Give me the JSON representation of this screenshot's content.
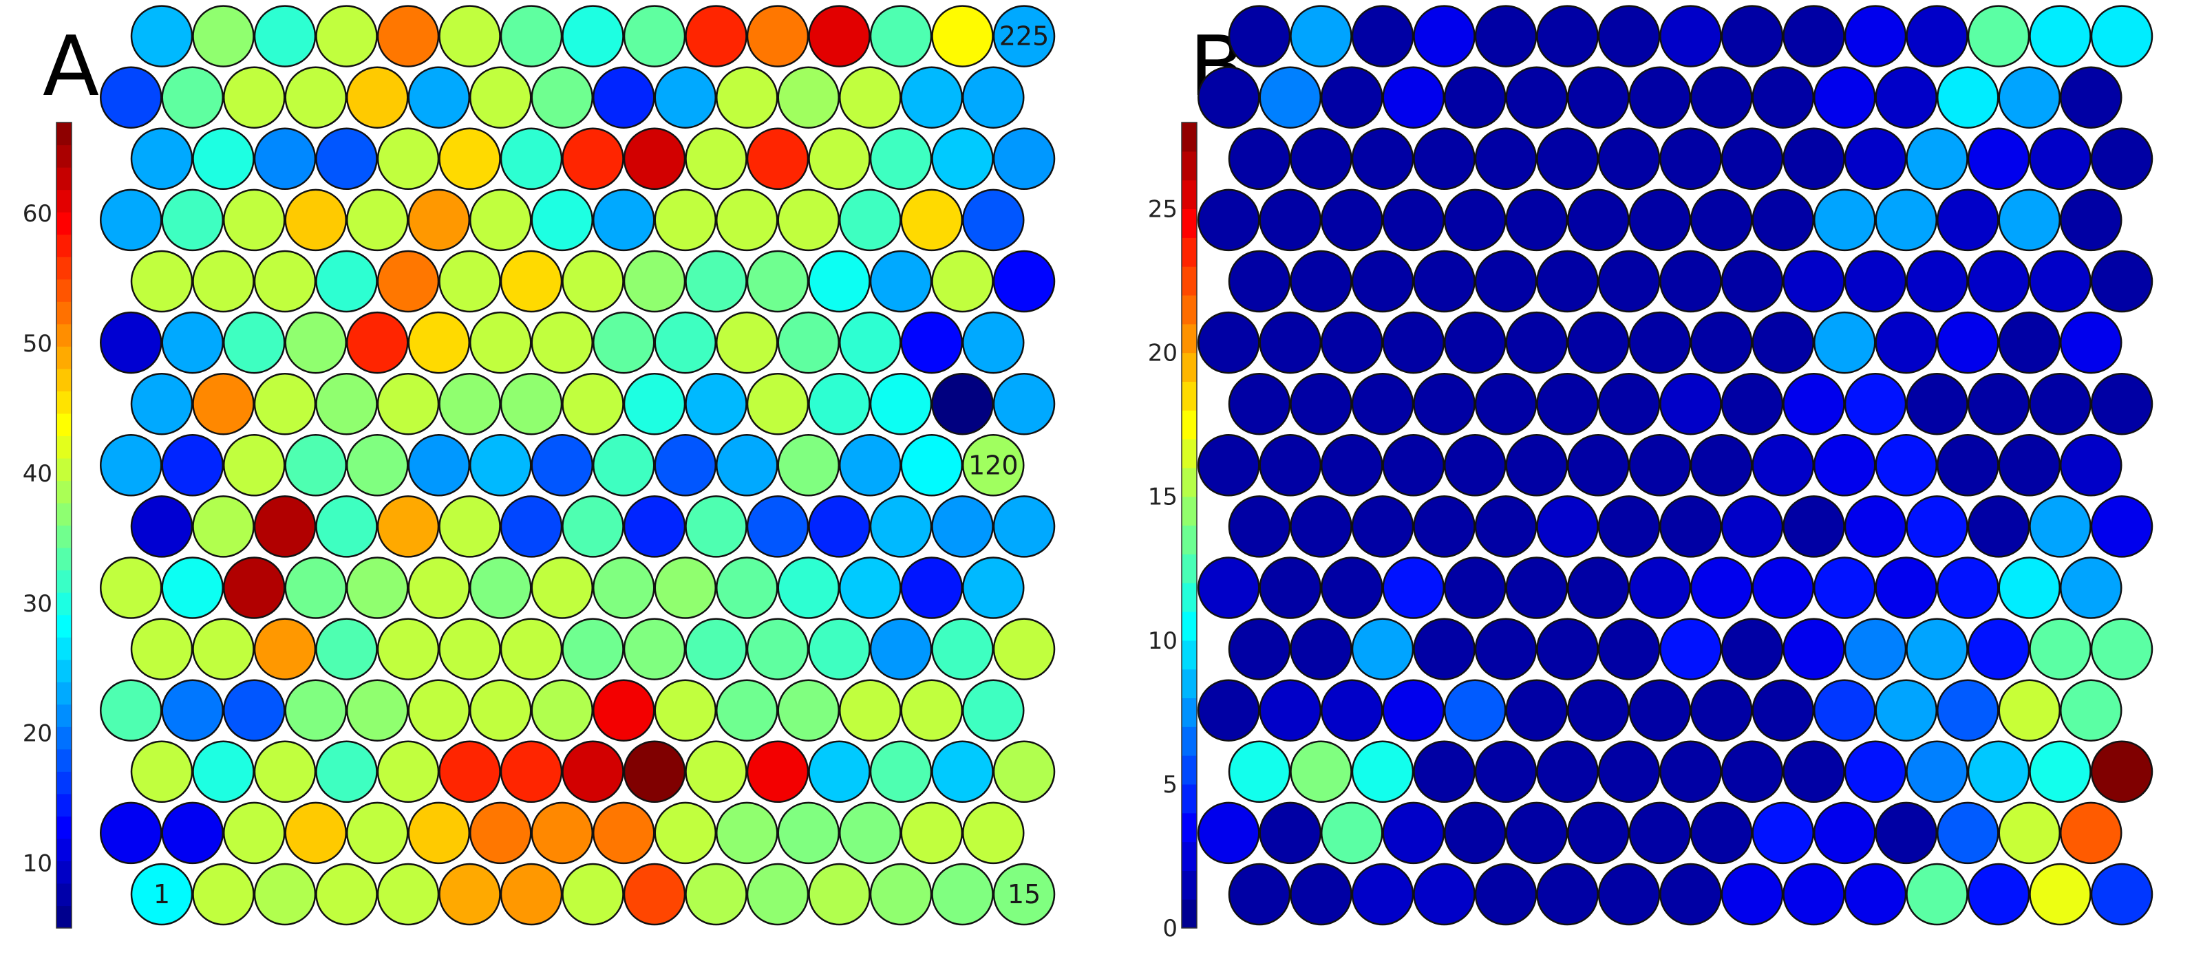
{
  "chart_data": [
    {
      "type": "heatmap",
      "panel_label": "A",
      "grid": {
        "rows": 15,
        "cols": 15,
        "layout": "hexagonal",
        "numbering": "row-major from bottom-left"
      },
      "node_labels": [
        {
          "node": 1,
          "text": "1"
        },
        {
          "node": 15,
          "text": "15"
        },
        {
          "node": 120,
          "text": "120"
        },
        {
          "node": 225,
          "text": "225"
        }
      ],
      "colorbar": {
        "min": 5,
        "max": 67,
        "ticks": [
          10,
          20,
          30,
          40,
          50,
          60
        ],
        "n_levels": 36,
        "colormap": "jet"
      },
      "values_rows_bottom_to_top": [
        [
          28,
          40,
          39,
          40,
          40,
          49,
          50,
          40,
          55,
          39,
          37,
          39,
          37,
          36,
          36
        ],
        [
          12,
          12,
          40,
          47,
          40,
          47,
          52,
          51,
          52,
          40,
          37,
          36,
          36,
          40,
          40
        ],
        [
          40,
          30,
          40,
          32,
          40,
          57,
          57,
          62,
          67,
          40,
          60,
          25,
          33,
          25,
          39
        ],
        [
          33,
          20,
          18,
          36,
          37,
          40,
          40,
          39,
          60,
          40,
          35,
          36,
          40,
          40,
          32
        ],
        [
          40,
          40,
          50,
          33,
          40,
          40,
          40,
          35,
          36,
          33,
          34,
          32,
          22,
          32,
          40
        ],
        [
          40,
          29,
          64,
          35,
          37,
          40,
          36,
          40,
          36,
          37,
          34,
          31,
          25,
          14,
          24
        ],
        [
          10,
          39,
          64,
          32,
          49,
          40,
          17,
          33,
          15,
          33,
          18,
          15,
          24,
          22,
          23
        ],
        [
          23,
          15,
          40,
          33,
          36,
          22,
          24,
          18,
          32,
          18,
          23,
          36,
          23,
          28,
          38
        ],
        [
          23,
          51,
          40,
          37,
          40,
          37,
          37,
          40,
          30,
          24,
          40,
          31,
          29,
          5,
          23
        ],
        [
          10,
          23,
          32,
          37,
          57,
          46,
          40,
          40,
          34,
          32,
          40,
          34,
          31,
          13,
          23
        ],
        [
          40,
          40,
          40,
          31,
          52,
          40,
          46,
          40,
          37,
          33,
          35,
          29,
          23,
          40,
          13
        ],
        [
          23,
          32,
          40,
          47,
          40,
          50,
          40,
          30,
          23,
          40,
          40,
          40,
          32,
          46,
          18
        ],
        [
          23,
          30,
          21,
          18,
          40,
          46,
          31,
          57,
          62,
          40,
          57,
          40,
          32,
          25,
          22
        ],
        [
          17,
          34,
          40,
          40,
          47,
          23,
          40,
          35,
          15,
          23,
          40,
          38,
          40,
          24,
          23
        ],
        [
          24,
          37,
          31,
          40,
          52,
          40,
          34,
          30,
          34,
          57,
          52,
          61,
          33,
          44,
          23
        ]
      ]
    },
    {
      "type": "heatmap",
      "panel_label": "B",
      "grid": {
        "rows": 15,
        "cols": 15,
        "layout": "hexagonal",
        "numbering": "row-major from bottom-left"
      },
      "colorbar": {
        "min": 0,
        "max": 28,
        "ticks": [
          0,
          5,
          10,
          15,
          20,
          25
        ],
        "n_levels": 28,
        "colormap": "jet"
      },
      "values_rows_bottom_to_top": [
        [
          1,
          1,
          2,
          2,
          1,
          1,
          1,
          1,
          3,
          3,
          3,
          13,
          4,
          17,
          5
        ],
        [
          3,
          1,
          13,
          2,
          1,
          1,
          1,
          1,
          1,
          4,
          3,
          1,
          6,
          16,
          22
        ],
        [
          11,
          14,
          11,
          1,
          1,
          1,
          1,
          1,
          1,
          1,
          4,
          7,
          9,
          11,
          28
        ],
        [
          1,
          2,
          2,
          3,
          6,
          1,
          1,
          1,
          1,
          1,
          5,
          8,
          6,
          16,
          13
        ],
        [
          1,
          1,
          8,
          1,
          1,
          1,
          1,
          4,
          1,
          3,
          7,
          8,
          4,
          13,
          13
        ],
        [
          2,
          1,
          1,
          4,
          1,
          1,
          1,
          2,
          3,
          3,
          4,
          3,
          4,
          10,
          8
        ],
        [
          1,
          1,
          1,
          1,
          1,
          2,
          1,
          1,
          2,
          1,
          3,
          4,
          1,
          8,
          3
        ],
        [
          1,
          1,
          1,
          1,
          1,
          1,
          1,
          1,
          1,
          2,
          3,
          4,
          1,
          1,
          2
        ],
        [
          1,
          1,
          1,
          1,
          1,
          1,
          1,
          2,
          1,
          3,
          4,
          1,
          1,
          1,
          1
        ],
        [
          1,
          1,
          1,
          1,
          1,
          1,
          1,
          1,
          1,
          1,
          8,
          2,
          3,
          1,
          3
        ],
        [
          1,
          1,
          1,
          1,
          1,
          1,
          1,
          1,
          1,
          2,
          2,
          2,
          2,
          2,
          1
        ],
        [
          1,
          1,
          1,
          1,
          1,
          1,
          1,
          1,
          1,
          1,
          8,
          8,
          2,
          8,
          1
        ],
        [
          1,
          1,
          1,
          1,
          1,
          1,
          1,
          1,
          1,
          1,
          2,
          8,
          3,
          2,
          1
        ],
        [
          1,
          7,
          1,
          3,
          1,
          1,
          1,
          1,
          1,
          1,
          3,
          2,
          10,
          8,
          1
        ],
        [
          1,
          8,
          1,
          3,
          1,
          1,
          1,
          2,
          1,
          1,
          3,
          2,
          13,
          10,
          10
        ]
      ]
    }
  ]
}
